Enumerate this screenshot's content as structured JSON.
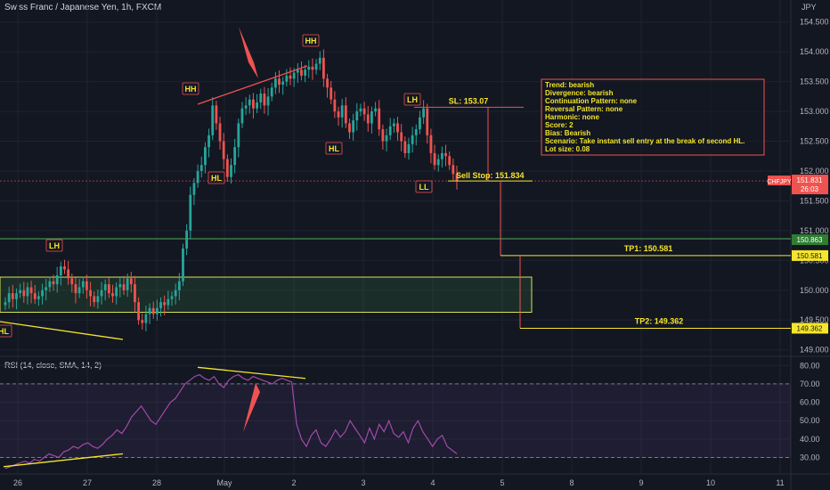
{
  "header": {
    "symbol_title": "Swiss Franc / Japanese Yen, 1h, FXCM",
    "currency": "JPY"
  },
  "rsi_panel": {
    "title": "RSI (14, close, SMA, 14, 2)"
  },
  "colors": {
    "background": "#131722",
    "grid": "#1f2330",
    "up": "#26a69a",
    "down": "#ef5350",
    "annotation": "#f5e52c",
    "trend": "#ef5350",
    "zone": "#d6e455",
    "rsi": "#a34aa8"
  },
  "chart_data": [
    {
      "type": "candlestick",
      "title": "Swiss Franc / Japanese Yen, 1h, FXCM",
      "y_axis": {
        "ticks": [
          149.0,
          149.5,
          150.0,
          150.5,
          151.0,
          151.5,
          152.0,
          152.5,
          153.0,
          153.5,
          154.0,
          154.5
        ],
        "range": [
          148.95,
          154.75
        ]
      },
      "x_axis": {
        "ticks": [
          "26",
          "27",
          "28",
          "May",
          "2",
          "3",
          "4",
          "5",
          "8",
          "9",
          "10",
          "11"
        ]
      },
      "price_labels": {
        "last": "151.831",
        "countdown": "26:03",
        "symbol": "CHFJPY",
        "level_high": "150.863",
        "tp1": "150.581",
        "tp2": "149.362"
      },
      "closes": [
        149.8,
        149.95,
        149.85,
        149.95,
        150.0,
        149.9,
        150.05,
        149.95,
        149.85,
        149.9,
        150.0,
        150.05,
        150.15,
        150.1,
        150.25,
        150.4,
        150.35,
        150.2,
        150.1,
        149.95,
        150.05,
        150.15,
        150.0,
        149.9,
        149.8,
        149.9,
        150.0,
        150.1,
        149.95,
        149.9,
        150.05,
        150.1,
        150.0,
        150.2,
        150.1,
        149.8,
        149.5,
        149.45,
        149.6,
        149.7,
        149.6,
        149.7,
        149.8,
        149.75,
        149.85,
        149.9,
        150.0,
        150.15,
        150.7,
        151.0,
        151.6,
        151.8,
        152.0,
        152.1,
        152.4,
        152.6,
        153.1,
        152.8,
        152.5,
        152.2,
        151.9,
        152.1,
        152.4,
        152.8,
        153.05,
        153.1,
        153.2,
        153.05,
        153.15,
        153.3,
        153.1,
        153.25,
        153.4,
        153.55,
        153.45,
        153.5,
        153.6,
        153.55,
        153.65,
        153.7,
        153.6,
        153.7,
        153.75,
        153.7,
        153.8,
        153.9,
        153.55,
        153.4,
        153.2,
        153.0,
        152.9,
        153.1,
        152.8,
        152.65,
        152.85,
        153.0,
        153.05,
        152.95,
        152.8,
        153.0,
        153.05,
        152.7,
        152.5,
        152.6,
        152.75,
        152.8,
        152.65,
        152.5,
        152.3,
        152.45,
        152.6,
        152.7,
        152.9,
        153.05,
        152.6,
        152.3,
        152.1,
        152.2,
        152.3,
        152.25,
        152.1,
        151.95,
        151.83
      ],
      "rsi_axis": {
        "ticks": [
          30.0,
          40.0,
          50.0,
          60.0,
          70.0,
          80.0
        ]
      },
      "rsi_values": [
        24,
        25,
        26,
        27,
        28,
        27,
        29,
        28,
        30,
        32,
        31,
        30,
        33,
        34,
        36,
        35,
        37,
        38,
        36,
        35,
        37,
        40,
        42,
        45,
        43,
        47,
        52,
        55,
        58,
        54,
        50,
        48,
        52,
        56,
        60,
        62,
        66,
        70,
        72,
        74,
        75,
        73,
        72,
        74,
        70,
        68,
        72,
        74,
        75,
        73,
        72,
        74,
        73,
        72,
        71,
        70,
        72,
        73,
        72,
        71,
        48,
        40,
        36,
        42,
        45,
        38,
        36,
        40,
        45,
        41,
        44,
        50,
        46,
        42,
        38,
        46,
        40,
        48,
        44,
        50,
        43,
        41,
        44,
        38,
        46,
        50,
        44,
        40,
        36,
        40,
        42,
        36,
        34,
        32
      ],
      "annotations": {
        "swing_labels": [
          "HH",
          "HH",
          "HL",
          "HL",
          "LH",
          "LH",
          "LL",
          "HL"
        ],
        "sl": "SL: 153.07",
        "sell_stop": "Sell Stop:",
        "sell_stop_price": "151.834",
        "tp1": "TP1: 150.581",
        "tp2": "TP2: 149.362"
      },
      "info_box": [
        "Trend: bearish",
        "Divergence: bearish",
        "Continuation Pattern: none",
        "Reversal Pattern: none",
        "Harmonic: none",
        "Score: 2",
        "Bias: Bearish",
        "Scenario: Take instant sell entry at the break of second HL.",
        "Lot size: 0.08"
      ]
    }
  ]
}
